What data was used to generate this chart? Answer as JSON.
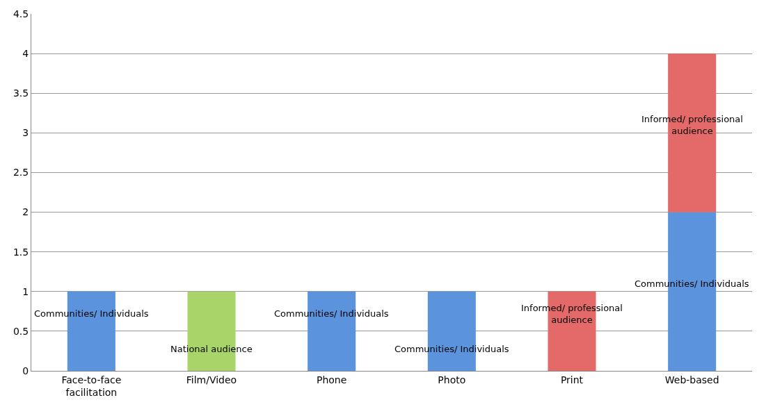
{
  "chart_data": {
    "type": "bar",
    "stacked": true,
    "categories": [
      "Face-to-face facilitation",
      "Film/Video",
      "Phone",
      "Photo",
      "Print",
      "Web-based"
    ],
    "series": [
      {
        "name": "Communities/ Individuals",
        "color": "#5b93dc",
        "values": [
          1,
          null,
          1,
          1,
          null,
          2
        ]
      },
      {
        "name": "National audience",
        "color": "#a9d46a",
        "values": [
          null,
          1,
          null,
          null,
          null,
          null
        ]
      },
      {
        "name": "Informed/ professional audience",
        "color": "#e46a6a",
        "values": [
          null,
          null,
          null,
          null,
          1,
          2
        ]
      }
    ],
    "ylim": [
      0,
      4.5
    ],
    "yticks": [
      0,
      0.5,
      1,
      1.5,
      2,
      2.5,
      3,
      3.5,
      4,
      4.5
    ],
    "grid": "y",
    "legend": false
  }
}
